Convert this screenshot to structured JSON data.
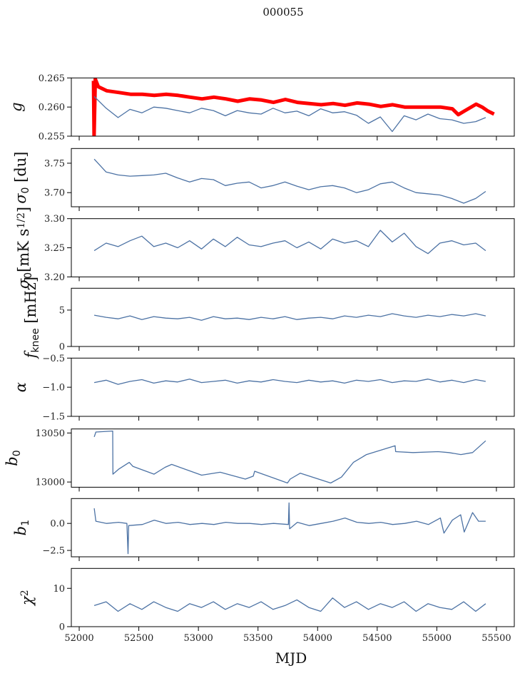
{
  "chart_data": {
    "type": "line",
    "title": "000055",
    "xlabel": "MJD",
    "xlim": [
      51934,
      55650
    ],
    "xticks": [
      52000,
      52500,
      53000,
      53500,
      54000,
      54500,
      55000,
      55500
    ],
    "xtick_labels": [
      "52000",
      "52500",
      "53000",
      "53500",
      "54000",
      "54500",
      "55000",
      "55500"
    ],
    "line_color": "#4c72a4",
    "highlight_color": "#ff0000",
    "common_x": [
      52126,
      52226,
      52326,
      52426,
      52526,
      52626,
      52726,
      52826,
      52926,
      53026,
      53126,
      53226,
      53326,
      53426,
      53526,
      53626,
      53726,
      53826,
      53926,
      54026,
      54126,
      54226,
      54326,
      54426,
      54526,
      54626,
      54726,
      54826,
      54926,
      55026,
      55126,
      55226,
      55326,
      55410
    ],
    "panels": [
      {
        "ylabel_parts": [
          {
            "t": "g",
            "i": true
          }
        ],
        "ylim": [
          0.255,
          0.265
        ],
        "yticks": [
          0.255,
          0.26,
          0.265
        ],
        "ytick_labels": [
          "0.255",
          "0.260",
          "0.265"
        ],
        "series": [
          {
            "name": "g-red",
            "color": "#ff0000",
            "width": 5,
            "x": [
              52120,
              52125,
              52135,
              52160,
              52230,
              52330,
              52430,
              52530,
              52630,
              52730,
              52830,
              52930,
              53030,
              53130,
              53230,
              53330,
              53430,
              53530,
              53630,
              53730,
              53830,
              53930,
              54030,
              54130,
              54230,
              54330,
              54430,
              54530,
              54630,
              54730,
              54830,
              54930,
              55030,
              55130,
              55180,
              55230,
              55330,
              55380,
              55430,
              55480
            ],
            "y": [
              0.2645,
              0.255,
              0.2648,
              0.2635,
              0.2628,
              0.2625,
              0.2622,
              0.2622,
              0.262,
              0.2622,
              0.262,
              0.2617,
              0.2614,
              0.2617,
              0.2614,
              0.261,
              0.2614,
              0.2612,
              0.2608,
              0.2613,
              0.2608,
              0.2606,
              0.2604,
              0.2606,
              0.2603,
              0.2607,
              0.2605,
              0.2601,
              0.2604,
              0.26,
              0.26,
              0.26,
              0.26,
              0.2597,
              0.2587,
              0.2593,
              0.2605,
              0.26,
              0.2593,
              0.2588
            ]
          },
          {
            "name": "g",
            "color": "#4c72a4",
            "width": 1.3,
            "y": [
              0.2618,
              0.2598,
              0.2582,
              0.2596,
              0.259,
              0.26,
              0.2598,
              0.2594,
              0.259,
              0.2598,
              0.2594,
              0.2585,
              0.2594,
              0.259,
              0.2588,
              0.2598,
              0.259,
              0.2593,
              0.2585,
              0.2597,
              0.259,
              0.2592,
              0.2586,
              0.2572,
              0.2583,
              0.2558,
              0.2585,
              0.2578,
              0.2588,
              0.258,
              0.2578,
              0.2572,
              0.2575,
              0.2582
            ]
          }
        ]
      },
      {
        "ylabel_parts": [
          {
            "t": "σ",
            "i": true
          },
          {
            "t": "0",
            "sub": true
          },
          {
            "t": " [du]"
          }
        ],
        "ylim": [
          3.676,
          3.775
        ],
        "yticks": [
          3.7,
          3.75
        ],
        "ytick_labels": [
          "3.70",
          "3.75"
        ],
        "series": [
          {
            "name": "sigma0-du",
            "color": "#4c72a4",
            "width": 1.3,
            "y": [
              3.757,
              3.735,
              3.73,
              3.728,
              3.729,
              3.73,
              3.733,
              3.725,
              3.718,
              3.724,
              3.722,
              3.712,
              3.716,
              3.718,
              3.708,
              3.712,
              3.718,
              3.711,
              3.705,
              3.71,
              3.712,
              3.708,
              3.7,
              3.705,
              3.715,
              3.718,
              3.708,
              3.7,
              3.698,
              3.696,
              3.69,
              3.682,
              3.69,
              3.702
            ]
          }
        ]
      },
      {
        "ylabel_parts": [
          {
            "t": "σ",
            "i": true
          },
          {
            "t": "0",
            "sub": true
          },
          {
            "t": "[mK s"
          },
          {
            "t": "1/2",
            "sup": true
          },
          {
            "t": "]"
          }
        ],
        "ylim": [
          3.2,
          3.3
        ],
        "yticks": [
          3.2,
          3.25,
          3.3
        ],
        "ytick_labels": [
          "3.20",
          "3.25",
          "3.30"
        ],
        "series": [
          {
            "name": "sigma0-mk",
            "color": "#4c72a4",
            "width": 1.3,
            "y": [
              3.245,
              3.258,
              3.252,
              3.262,
              3.27,
              3.252,
              3.258,
              3.25,
              3.262,
              3.248,
              3.265,
              3.252,
              3.268,
              3.255,
              3.252,
              3.258,
              3.262,
              3.25,
              3.26,
              3.248,
              3.265,
              3.258,
              3.262,
              3.252,
              3.28,
              3.26,
              3.275,
              3.252,
              3.24,
              3.258,
              3.262,
              3.255,
              3.258,
              3.245
            ]
          }
        ]
      },
      {
        "ylabel_parts": [
          {
            "t": "f",
            "i": true
          },
          {
            "t": "knee",
            "sub": true
          },
          {
            "t": " [mHz]"
          }
        ],
        "ylim": [
          0,
          8
        ],
        "yticks": [
          0,
          5
        ],
        "ytick_labels": [
          "0",
          "5"
        ],
        "series": [
          {
            "name": "fknee",
            "color": "#4c72a4",
            "width": 1.3,
            "y": [
              4.3,
              4.0,
              3.8,
              4.2,
              3.7,
              4.1,
              3.9,
              3.8,
              4.0,
              3.6,
              4.1,
              3.8,
              3.9,
              3.7,
              4.0,
              3.8,
              4.1,
              3.7,
              3.9,
              4.0,
              3.8,
              4.2,
              4.0,
              4.3,
              4.1,
              4.5,
              4.2,
              4.0,
              4.3,
              4.1,
              4.4,
              4.2,
              4.5,
              4.2
            ]
          }
        ]
      },
      {
        "ylabel_parts": [
          {
            "t": "α",
            "i": true
          }
        ],
        "ylim": [
          -1.5,
          -0.5
        ],
        "yticks": [
          -1.5,
          -1.0,
          -0.5
        ],
        "ytick_labels": [
          "−1.5",
          "−1.0",
          "−0.5"
        ],
        "series": [
          {
            "name": "alpha",
            "color": "#4c72a4",
            "width": 1.3,
            "y": [
              -0.92,
              -0.88,
              -0.95,
              -0.9,
              -0.87,
              -0.93,
              -0.89,
              -0.91,
              -0.86,
              -0.92,
              -0.9,
              -0.88,
              -0.93,
              -0.89,
              -0.91,
              -0.87,
              -0.9,
              -0.92,
              -0.88,
              -0.91,
              -0.89,
              -0.93,
              -0.88,
              -0.9,
              -0.87,
              -0.92,
              -0.89,
              -0.9,
              -0.86,
              -0.91,
              -0.88,
              -0.92,
              -0.87,
              -0.9
            ]
          }
        ]
      },
      {
        "ylabel_parts": [
          {
            "t": "b",
            "i": true
          },
          {
            "t": "0",
            "sub": true
          }
        ],
        "ylim": [
          12994.7,
          13054.1
        ],
        "yticks": [
          13000,
          13050
        ],
        "ytick_labels": [
          "13000",
          "13050"
        ],
        "series": [
          {
            "name": "b0",
            "color": "#4c72a4",
            "width": 1.3,
            "x": [
              52126,
              52140,
              52281,
              52283,
              52330,
              52420,
              52450,
              52628,
              52720,
              52776,
              53027,
              53183,
              53394,
              53460,
              53472,
              53747,
              53770,
              53855,
              54110,
              54200,
              54300,
              54410,
              54650,
              54655,
              54800,
              55010,
              55100,
              55202,
              55300,
              55410
            ],
            "y": [
              13046,
              13051,
              13052,
              13008,
              13013,
              13020,
              13016,
              13008,
              13015,
              13018,
              13007,
              13010,
              13003,
              13006,
              13011,
              12999,
              13003,
              13009,
              12999,
              13005,
              13020,
              13028,
              13037,
              13031,
              13030,
              13031,
              13030,
              13028,
              13030,
              13042
            ]
          }
        ]
      },
      {
        "ylabel_parts": [
          {
            "t": "b",
            "i": true
          },
          {
            "t": "1",
            "sub": true
          }
        ],
        "ylim": [
          -3.09,
          2.3
        ],
        "yticks": [
          -2.5,
          0.0
        ],
        "ytick_labels": [
          "−2.5",
          "0.0"
        ],
        "series": [
          {
            "name": "b1",
            "color": "#4c72a4",
            "width": 1.3,
            "x": [
              52126,
              52140,
              52230,
              52330,
              52400,
              52410,
              52415,
              52530,
              52630,
              52730,
              52830,
              52930,
              53030,
              53130,
              53230,
              53330,
              53430,
              53530,
              53630,
              53755,
              53760,
              53765,
              53830,
              53930,
              54030,
              54130,
              54230,
              54330,
              54430,
              54530,
              54630,
              54730,
              54830,
              54930,
              55030,
              55060,
              55130,
              55200,
              55230,
              55300,
              55350,
              55410
            ],
            "y": [
              1.4,
              0.2,
              0.0,
              0.1,
              0.0,
              -2.8,
              -0.2,
              -0.1,
              0.3,
              0.0,
              0.1,
              -0.1,
              0.0,
              -0.1,
              0.1,
              0.0,
              0.0,
              -0.1,
              0.0,
              -0.1,
              1.9,
              -0.5,
              0.1,
              -0.2,
              0.0,
              0.2,
              0.5,
              0.1,
              0.0,
              0.1,
              -0.1,
              0.0,
              0.2,
              -0.1,
              0.5,
              -0.9,
              0.3,
              0.8,
              -0.8,
              1.0,
              0.2,
              0.2
            ]
          }
        ]
      },
      {
        "ylabel_parts": [
          {
            "t": "χ",
            "i": true
          },
          {
            "t": "2",
            "sup": true
          }
        ],
        "ylim": [
          0,
          15.2
        ],
        "yticks": [
          0,
          10
        ],
        "ytick_labels": [
          "0",
          "10"
        ],
        "series": [
          {
            "name": "chi2",
            "color": "#4c72a4",
            "width": 1.3,
            "y": [
              5.5,
              6.5,
              4.0,
              6.0,
              4.5,
              6.5,
              5.0,
              4.0,
              6.0,
              5.0,
              6.5,
              4.5,
              6.0,
              5.0,
              6.5,
              4.5,
              5.5,
              7.0,
              5.0,
              4.0,
              7.5,
              5.0,
              6.5,
              4.5,
              6.0,
              5.0,
              6.5,
              4.0,
              6.0,
              5.0,
              4.5,
              6.5,
              4.0,
              6.0
            ]
          }
        ]
      }
    ]
  }
}
